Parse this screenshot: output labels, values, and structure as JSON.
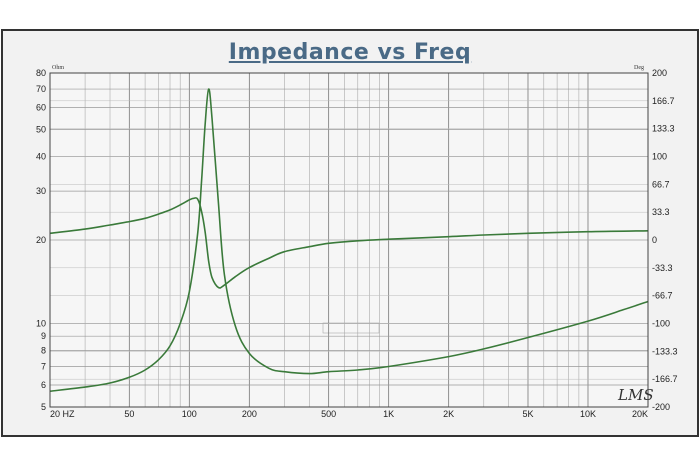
{
  "chart_data": {
    "type": "line",
    "title": "Impedance vs Freq",
    "watermark": "LMS",
    "x_axis": {
      "scale": "log",
      "range": [
        20,
        20000
      ],
      "tick_values": [
        20,
        50,
        100,
        200,
        500,
        1000,
        2000,
        5000,
        10000,
        20000
      ],
      "tick_labels": [
        "20 HZ",
        "50",
        "100",
        "200",
        "500",
        "1K",
        "2K",
        "5K",
        "10K",
        "20K"
      ]
    },
    "y_left": {
      "unit": "Ohm",
      "scale": "log",
      "range": [
        5,
        80
      ],
      "tick_values": [
        5,
        6,
        7,
        8,
        9,
        10,
        20,
        30,
        40,
        50,
        60,
        70,
        80
      ],
      "tick_labels": [
        "5",
        "6",
        "7",
        "8",
        "9",
        "10",
        "20",
        "30",
        "40",
        "50",
        "60",
        "70",
        "80"
      ]
    },
    "y_right": {
      "unit": "Deg",
      "scale": "linear",
      "range": [
        -200,
        200
      ],
      "tick_values": [
        200,
        166.7,
        133.3,
        100,
        66.7,
        33.3,
        0,
        -33.3,
        -66.7,
        -100,
        -133.3,
        -166.7,
        -200
      ],
      "tick_labels": [
        "200",
        "166.7",
        "133.3",
        "100",
        "66.7",
        "33.3",
        "0",
        "-33.3",
        "-66.7",
        "-100",
        "-133.3",
        "-166.7",
        "-200"
      ]
    },
    "grid": true,
    "series": [
      {
        "axis": "left",
        "color": "#3a7a3a",
        "x": [
          20,
          30,
          40,
          50,
          60,
          70,
          80,
          90,
          100,
          110,
          115,
          120,
          125,
          130,
          140,
          150,
          170,
          200,
          250,
          300,
          400,
          500,
          700,
          1000,
          2000,
          3000,
          5000,
          10000,
          15000,
          20000
        ],
        "y": [
          5.7,
          5.9,
          6.1,
          6.4,
          6.8,
          7.4,
          8.3,
          10,
          13,
          21,
          32,
          52,
          70,
          55,
          27,
          15,
          9.8,
          7.8,
          6.9,
          6.7,
          6.6,
          6.7,
          6.8,
          7.0,
          7.6,
          8.1,
          8.9,
          10.2,
          11.2,
          12
        ]
      },
      {
        "axis": "right",
        "color": "#3a7a3a",
        "x": [
          20,
          30,
          40,
          50,
          60,
          70,
          80,
          90,
          100,
          105,
          110,
          115,
          120,
          125,
          130,
          140,
          150,
          170,
          200,
          250,
          300,
          400,
          500,
          700,
          1000,
          2000,
          3000,
          5000,
          10000,
          20000
        ],
        "y": [
          8,
          13,
          18,
          22,
          26,
          31,
          36,
          42,
          48,
          50,
          49,
          35,
          10,
          -25,
          -45,
          -57,
          -54,
          -44,
          -33,
          -22,
          -14,
          -8,
          -4,
          -1,
          1,
          4,
          6,
          8,
          10,
          11
        ]
      }
    ]
  }
}
